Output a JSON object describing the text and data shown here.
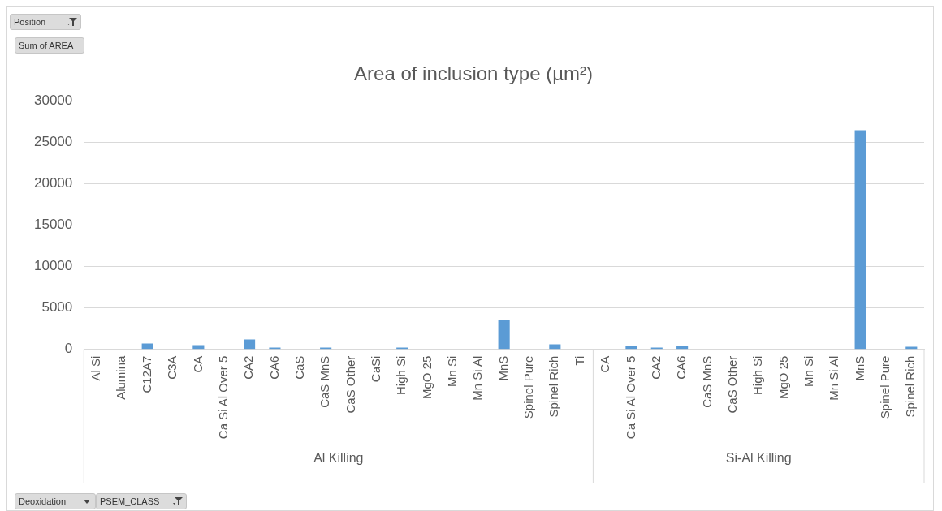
{
  "chart_data": {
    "type": "bar",
    "title": "Area of inclusion type (µm²)",
    "categories": [
      "Al Si",
      "Alumina",
      "C12A7",
      "C3A",
      "CA",
      "Ca Si Al Over 5",
      "CA2",
      "CA6",
      "CaS",
      "CaS MnS",
      "CaS Other",
      "CaSi",
      "High Si",
      "MgO 25",
      "Mn Si",
      "Mn Si Al",
      "MnS",
      "Spinel Pure",
      "Spinel Rich",
      "Ti",
      "CA",
      "Ca Si Al Over 5",
      "CA2",
      "CA6",
      "CaS MnS",
      "CaS Other",
      "High Si",
      "MgO 25",
      "Mn Si",
      "Mn Si Al",
      "MnS",
      "Spinel Pure",
      "Spinel Rich"
    ],
    "values": [
      0,
      0,
      700,
      0,
      500,
      0,
      1200,
      200,
      0,
      200,
      0,
      0,
      200,
      0,
      0,
      0,
      3600,
      0,
      600,
      0,
      0,
      400,
      200,
      400,
      0,
      0,
      0,
      0,
      0,
      0,
      26500,
      0,
      300
    ],
    "color": "#5b9bd5",
    "ylim": [
      0,
      30000
    ],
    "yticks": [
      0,
      5000,
      10000,
      15000,
      20000,
      25000,
      30000
    ],
    "grid": "y",
    "legend": false,
    "annotations": [
      "Al Killing",
      "Si-Al Killing",
      "Position",
      "Sum of AREA",
      "Deoxidation",
      "PSEM_CLASS"
    ]
  }
}
